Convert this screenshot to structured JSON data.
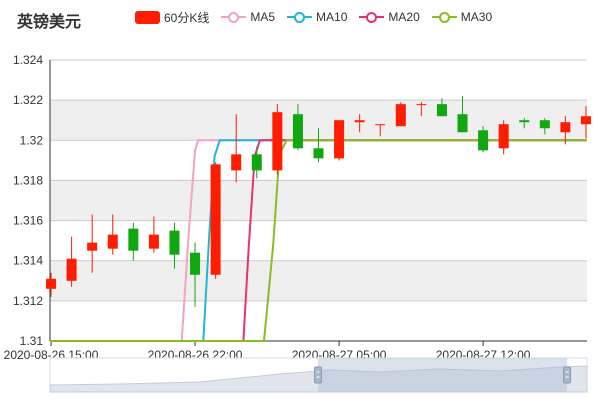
{
  "chart_data": {
    "type": "candlestick",
    "title": "英镑美元",
    "legend": [
      {
        "name": "60分K线",
        "marker": "rect",
        "color": "#ff1c00"
      },
      {
        "name": "MA5",
        "marker": "line",
        "color": "#f5a3be"
      },
      {
        "name": "MA10",
        "marker": "line",
        "color": "#1fb7d6"
      },
      {
        "name": "MA20",
        "marker": "line",
        "color": "#e8336a"
      },
      {
        "name": "MA30",
        "marker": "line",
        "color": "#8dbb24"
      }
    ],
    "colors": {
      "up": "#ff1c00",
      "down": "#10a710",
      "grid": "#cccccc",
      "band": "#efefef"
    },
    "ylim": [
      1.31,
      1.324
    ],
    "yticks": [
      1.31,
      1.312,
      1.314,
      1.316,
      1.318,
      1.32,
      1.322,
      1.324
    ],
    "ytick_labels": [
      "1.31",
      "1.312",
      "1.314",
      "1.316",
      "1.318",
      "1.32",
      "1.322",
      "1.324"
    ],
    "xtick_labels": [
      {
        "index": 0,
        "label": "2020-08-26 15:00"
      },
      {
        "index": 7,
        "label": "2020-08-26 22:00"
      },
      {
        "index": 14,
        "label": "2020-08-27 05:00"
      },
      {
        "index": 21,
        "label": "2020-08-27 12:00"
      }
    ],
    "x_range_index": [
      -0.05,
      26.05
    ],
    "candles": [
      {
        "open": 1.3126,
        "close": 1.3131,
        "high": 1.3134,
        "low": 1.3122
      },
      {
        "open": 1.313,
        "close": 1.3141,
        "high": 1.3152,
        "low": 1.3127
      },
      {
        "open": 1.3145,
        "close": 1.3149,
        "high": 1.3163,
        "low": 1.3134
      },
      {
        "open": 1.3146,
        "close": 1.3153,
        "high": 1.3163,
        "low": 1.3143
      },
      {
        "open": 1.3156,
        "close": 1.3145,
        "high": 1.3159,
        "low": 1.314
      },
      {
        "open": 1.3146,
        "close": 1.3153,
        "high": 1.3162,
        "low": 1.3144
      },
      {
        "open": 1.3155,
        "close": 1.3143,
        "high": 1.3159,
        "low": 1.3136
      },
      {
        "open": 1.3144,
        "close": 1.3133,
        "high": 1.3149,
        "low": 1.3117
      },
      {
        "open": 1.3133,
        "close": 1.3188,
        "high": 1.3189,
        "low": 1.3131
      },
      {
        "open": 1.3185,
        "close": 1.3193,
        "high": 1.3213,
        "low": 1.3179
      },
      {
        "open": 1.3193,
        "close": 1.3185,
        "high": 1.3197,
        "low": 1.3181
      },
      {
        "open": 1.3185,
        "close": 1.3214,
        "high": 1.3218,
        "low": 1.3183
      },
      {
        "open": 1.3213,
        "close": 1.3196,
        "high": 1.3218,
        "low": 1.3195
      },
      {
        "open": 1.3196,
        "close": 1.3191,
        "high": 1.3206,
        "low": 1.3189
      },
      {
        "open": 1.3191,
        "close": 1.321,
        "high": 1.321,
        "low": 1.319
      },
      {
        "open": 1.3209,
        "close": 1.321,
        "high": 1.3213,
        "low": 1.3204
      },
      {
        "open": 1.3208,
        "close": 1.3208,
        "high": 1.3208,
        "low": 1.3202
      },
      {
        "open": 1.3207,
        "close": 1.3218,
        "high": 1.3219,
        "low": 1.3207
      },
      {
        "open": 1.3218,
        "close": 1.3218,
        "high": 1.3219,
        "low": 1.3212
      },
      {
        "open": 1.3218,
        "close": 1.3212,
        "high": 1.3221,
        "low": 1.3212
      },
      {
        "open": 1.3213,
        "close": 1.3204,
        "high": 1.3222,
        "low": 1.3204
      },
      {
        "open": 1.3205,
        "close": 1.3195,
        "high": 1.3207,
        "low": 1.3194
      },
      {
        "open": 1.3196,
        "close": 1.3208,
        "high": 1.321,
        "low": 1.3193
      },
      {
        "open": 1.321,
        "close": 1.3209,
        "high": 1.3211,
        "low": 1.3206
      },
      {
        "open": 1.321,
        "close": 1.3206,
        "high": 1.3211,
        "low": 1.3203
      },
      {
        "open": 1.3204,
        "close": 1.3209,
        "high": 1.3212,
        "low": 1.3198
      },
      {
        "open": 1.3208,
        "close": 1.3212,
        "high": 1.3217,
        "low": 1.3201
      }
    ],
    "ma_lines": [
      {
        "name": "MA5",
        "color": "#f5a3be",
        "points": [
          [
            -0.05,
            1.31
          ],
          [
            5.85,
            1.31
          ],
          [
            6.35,
            1.31
          ],
          [
            6.7,
            1.3155
          ],
          [
            7.0,
            1.3195
          ],
          [
            7.15,
            1.32
          ],
          [
            26.05,
            1.32
          ]
        ]
      },
      {
        "name": "MA10",
        "color": "#1fb7d6",
        "points": [
          [
            -0.05,
            1.31
          ],
          [
            7.4,
            1.31
          ],
          [
            7.7,
            1.3155
          ],
          [
            7.95,
            1.3192
          ],
          [
            8.2,
            1.32
          ],
          [
            26.05,
            1.32
          ]
        ]
      },
      {
        "name": "MA20",
        "color": "#e8336a",
        "points": [
          [
            -0.05,
            1.31
          ],
          [
            3.7,
            1.31
          ],
          [
            9.35,
            1.31
          ],
          [
            9.6,
            1.3145
          ],
          [
            9.9,
            1.3192
          ],
          [
            10.15,
            1.32
          ],
          [
            26.05,
            1.32
          ]
        ]
      },
      {
        "name": "MA30",
        "color": "#8dbb24",
        "points": [
          [
            -0.05,
            1.31
          ],
          [
            3.65,
            1.31
          ],
          [
            10.35,
            1.31
          ],
          [
            10.8,
            1.3148
          ],
          [
            11.1,
            1.3193
          ],
          [
            11.45,
            1.32
          ],
          [
            26.05,
            1.32
          ]
        ]
      }
    ],
    "zoom": {
      "start": 0.499,
      "end": 0.963
    }
  }
}
